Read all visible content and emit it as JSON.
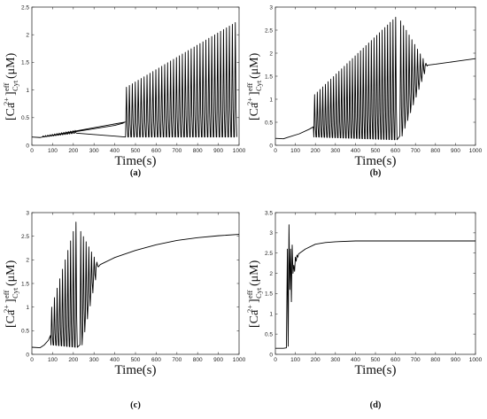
{
  "chart_data": [
    {
      "type": "line",
      "caption": "(a)",
      "xlabel": "Time(s)",
      "ylabel": {
        "base": "[Ca",
        "sup": "2+",
        "close": "]",
        "eff": "eff",
        "cyt": "Cyt",
        "unit": " (μM)"
      },
      "xlim": [
        0,
        1000
      ],
      "ylim": [
        0,
        2.5
      ],
      "xticks": [
        0,
        100,
        200,
        300,
        400,
        500,
        600,
        700,
        800,
        900,
        1000
      ],
      "yticks": [
        "0",
        "0.5",
        "1",
        "1.5",
        "2",
        "2.5"
      ],
      "ytick_values": [
        0,
        0.5,
        1,
        1.5,
        2,
        2.5
      ],
      "series": [
        {
          "segments": [
            {
              "kind": "smooth",
              "x": [
                0,
                40,
                50,
                100,
                200,
                300,
                400,
                440,
                450
              ],
              "y": [
                0.15,
                0.14,
                0.15,
                0.18,
                0.24,
                0.3,
                0.36,
                0.4,
                0.42
              ]
            },
            {
              "kind": "osc",
              "t0": 50,
              "t1": 220,
              "period": 11,
              "lo": [
                0.15,
                0.22
              ],
              "hi": [
                0.17,
                0.27
              ]
            },
            {
              "kind": "osc",
              "t0": 450,
              "t1": 1000,
              "period": 14.2,
              "lo": [
                0.15,
                0.15
              ],
              "hi": [
                1.05,
                2.22
              ]
            }
          ]
        }
      ]
    },
    {
      "type": "line",
      "caption": "(b)",
      "xlabel": "Time(s)",
      "ylabel": {
        "base": "[Ca",
        "sup": "2+",
        "close": "]",
        "eff": "eff",
        "cyt": "Cyt",
        "unit": " (μM)"
      },
      "xlim": [
        0,
        1000
      ],
      "ylim": [
        0,
        3
      ],
      "xticks": [
        0,
        100,
        200,
        300,
        400,
        500,
        600,
        700,
        800,
        900,
        1000
      ],
      "yticks": [
        "0",
        "0.5",
        "1",
        "1.5",
        "2",
        "2.5",
        "3"
      ],
      "ytick_values": [
        0,
        0.5,
        1,
        1.5,
        2,
        2.5,
        3
      ],
      "series": [
        {
          "segments": [
            {
              "kind": "smooth",
              "x": [
                0,
                40,
                60,
                120,
                170,
                190
              ],
              "y": [
                0.15,
                0.14,
                0.17,
                0.25,
                0.35,
                0.4
              ]
            },
            {
              "kind": "osc",
              "t0": 190,
              "t1": 620,
              "period": 13.5,
              "lo": [
                0.18,
                0.12
              ],
              "hi": [
                1.1,
                2.78
              ]
            },
            {
              "kind": "damp",
              "t0": 620,
              "t1": 760,
              "period": 14,
              "lo": [
                0.2,
                1.72
              ],
              "hi": [
                2.7,
                1.78
              ]
            },
            {
              "kind": "smooth",
              "x": [
                760,
                800,
                900,
                1000
              ],
              "y": [
                1.74,
                1.76,
                1.82,
                1.88
              ]
            }
          ]
        }
      ]
    },
    {
      "type": "line",
      "caption": "(c)",
      "xlabel": "Time(s)",
      "ylabel": {
        "base": "[Ca",
        "sup": "2+",
        "close": "]",
        "eff": "eff",
        "cyt": "Cyt",
        "unit": " (μM)"
      },
      "xlim": [
        0,
        1000
      ],
      "ylim": [
        0,
        3
      ],
      "xticks": [
        0,
        100,
        200,
        300,
        400,
        500,
        600,
        700,
        800,
        900,
        1000
      ],
      "yticks": [
        "0",
        "0.5",
        "1",
        "1.5",
        "2",
        "2.5",
        "3"
      ],
      "ytick_values": [
        0,
        0.5,
        1,
        1.5,
        2,
        2.5,
        3
      ],
      "series": [
        {
          "segments": [
            {
              "kind": "smooth",
              "x": [
                0,
                40,
                60,
                80,
                90
              ],
              "y": [
                0.15,
                0.14,
                0.2,
                0.3,
                0.4
              ]
            },
            {
              "kind": "osc",
              "t0": 90,
              "t1": 230,
              "period": 13,
              "lo": [
                0.2,
                0.15
              ],
              "hi": [
                1.0,
                2.8
              ]
            },
            {
              "kind": "damp",
              "t0": 230,
              "t1": 330,
              "period": 13,
              "lo": [
                0.2,
                1.85
              ],
              "hi": [
                2.6,
                1.95
              ]
            },
            {
              "kind": "smooth",
              "x": [
                330,
                400,
                500,
                600,
                700,
                800,
                900,
                1000
              ],
              "y": [
                1.9,
                2.05,
                2.2,
                2.32,
                2.41,
                2.47,
                2.51,
                2.54
              ]
            }
          ]
        }
      ]
    },
    {
      "type": "line",
      "caption": "(d)",
      "xlabel": "Time(s)",
      "ylabel": {
        "base": "[Ca",
        "sup": "2+",
        "close": "]",
        "eff": "eff",
        "cyt": "Cyt",
        "unit": " (μM)"
      },
      "xlim": [
        0,
        1000
      ],
      "ylim": [
        0,
        3.5
      ],
      "xticks": [
        0,
        100,
        200,
        300,
        400,
        500,
        600,
        700,
        800,
        900,
        1000
      ],
      "yticks": [
        "0",
        "0.5",
        "1",
        "1.5",
        "2",
        "2.5",
        "3",
        "3.5"
      ],
      "ytick_values": [
        0,
        0.5,
        1,
        1.5,
        2,
        2.5,
        3,
        3.5
      ],
      "series": [
        {
          "segments": [
            {
              "kind": "points",
              "x": [
                0,
                40,
                55,
                60,
                64,
                68,
                72,
                76,
                80,
                84,
                88,
                92,
                96,
                100,
                104,
                108,
                112,
                116
              ],
              "y": [
                0.15,
                0.15,
                0.16,
                2.6,
                0.2,
                3.2,
                1.6,
                2.6,
                1.3,
                2.7,
                2.0,
                2.2,
                2.05,
                2.4,
                2.3,
                2.45,
                2.4,
                2.48
              ]
            },
            {
              "kind": "smooth",
              "x": [
                116,
                150,
                200,
                250,
                300,
                400,
                500,
                600,
                800,
                1000
              ],
              "y": [
                2.48,
                2.6,
                2.72,
                2.76,
                2.78,
                2.8,
                2.8,
                2.8,
                2.8,
                2.8
              ]
            }
          ]
        }
      ]
    }
  ]
}
